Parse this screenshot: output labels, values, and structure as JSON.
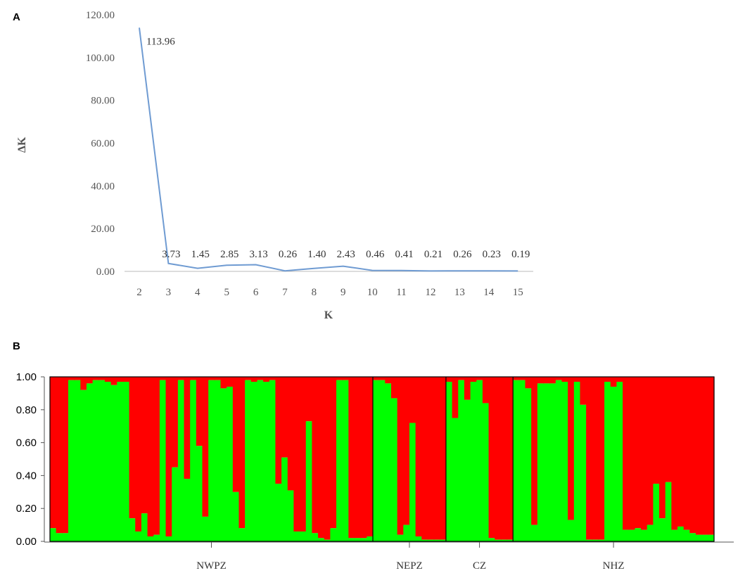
{
  "panels": {
    "a_label": "A",
    "b_label": "B"
  },
  "chart_data": [
    {
      "type": "line",
      "xlabel": "K",
      "ylabel": "ΔK",
      "x": [
        2,
        3,
        4,
        5,
        6,
        7,
        8,
        9,
        10,
        11,
        12,
        13,
        14,
        15
      ],
      "values": [
        113.96,
        3.73,
        1.45,
        2.85,
        3.13,
        0.26,
        1.4,
        2.43,
        0.46,
        0.41,
        0.21,
        0.26,
        0.23,
        0.19
      ],
      "data_labels": [
        "113.96",
        "3.73",
        "1.45",
        "2.85",
        "3.13",
        "0.26",
        "1.40",
        "2.43",
        "0.46",
        "0.41",
        "0.21",
        "0.26",
        "0.23",
        "0.19"
      ],
      "yticks": [
        "0.00",
        "20.00",
        "40.00",
        "60.00",
        "80.00",
        "100.00",
        "120.00"
      ],
      "ylim": [
        0,
        120
      ],
      "grid": false,
      "line_color": "#6f9bd2"
    },
    {
      "type": "bar",
      "subtype": "stacked",
      "yticks": [
        "0.00",
        "0.20",
        "0.40",
        "0.60",
        "0.80",
        "1.00"
      ],
      "ylim": [
        0,
        1
      ],
      "group_labels": [
        "NWPZ",
        "NEPZ",
        "CZ",
        "NHZ"
      ],
      "group_sizes": [
        53,
        12,
        11,
        33
      ],
      "colors": {
        "green": "#00ff00",
        "red": "#ff0000"
      },
      "green_values": [
        0.08,
        0.05,
        0.05,
        0.98,
        0.98,
        0.92,
        0.96,
        0.98,
        0.98,
        0.97,
        0.95,
        0.97,
        0.97,
        0.14,
        0.06,
        0.17,
        0.03,
        0.04,
        0.98,
        0.03,
        0.45,
        0.98,
        0.38,
        0.98,
        0.58,
        0.15,
        0.98,
        0.98,
        0.93,
        0.94,
        0.3,
        0.08,
        0.98,
        0.97,
        0.98,
        0.97,
        0.98,
        0.35,
        0.51,
        0.31,
        0.06,
        0.06,
        0.73,
        0.05,
        0.02,
        0.01,
        0.08,
        0.98,
        0.98,
        0.02,
        0.02,
        0.02,
        0.03,
        0.98,
        0.98,
        0.96,
        0.87,
        0.04,
        0.1,
        0.72,
        0.03,
        0.01,
        0.01,
        0.01,
        0.01,
        0.97,
        0.75,
        0.98,
        0.86,
        0.97,
        0.98,
        0.84,
        0.02,
        0.01,
        0.01,
        0.01,
        0.98,
        0.98,
        0.93,
        0.1,
        0.96,
        0.96,
        0.96,
        0.98,
        0.97,
        0.13,
        0.97,
        0.83,
        0.01,
        0.01,
        0.01,
        0.97,
        0.94,
        0.97,
        0.07,
        0.07,
        0.08,
        0.07,
        0.1,
        0.35,
        0.14,
        0.36,
        0.07,
        0.09,
        0.07,
        0.05,
        0.04,
        0.04,
        0.04
      ]
    }
  ]
}
